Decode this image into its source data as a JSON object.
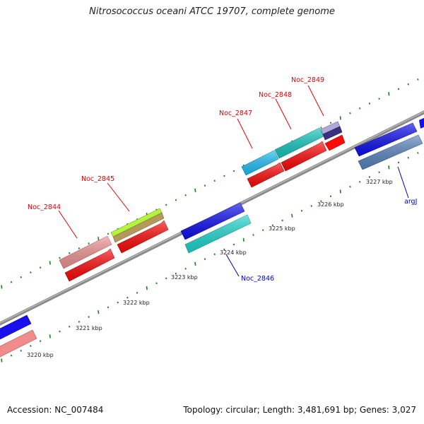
{
  "title": "Nitrosococcus oceani ATCC 19707, complete genome",
  "footer": {
    "accession": "Accession: NC_007484",
    "topology": "Topology: circular; Length: 3,481,691 bp; Genes: 3,027"
  },
  "colors": {
    "backbone": "#8c8c8c",
    "tick": "#1e7d1e",
    "upper_label": "#dd0000",
    "lower_label": "#0000cc"
  },
  "tick_labels": [
    "3220 kbp",
    "3221 kbp",
    "3222 kbp",
    "3223 kbp",
    "3224 kbp",
    "3225 kbp",
    "3226 kbp",
    "3227 kbp"
  ],
  "genes": [
    {
      "name": "Noc_2844",
      "strand": "upper",
      "color": "pink"
    },
    {
      "name": "Noc_2845",
      "strand": "upper",
      "color": "lime"
    },
    {
      "name": "Noc_2846",
      "strand": "lower",
      "color": "cyan"
    },
    {
      "name": "Noc_2847",
      "strand": "upper",
      "color": "sky-blue"
    },
    {
      "name": "Noc_2848",
      "strand": "upper",
      "color": "teal"
    },
    {
      "name": "Noc_2849",
      "strand": "upper",
      "color": "slate-purple"
    },
    {
      "name": "argJ",
      "strand": "lower",
      "color": "steel-blue"
    }
  ]
}
